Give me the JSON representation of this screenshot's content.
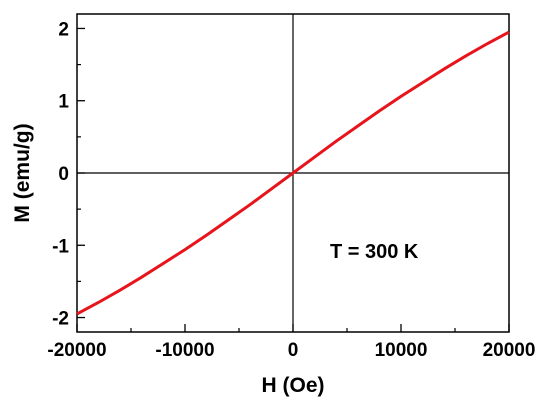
{
  "chart_data": {
    "type": "line",
    "title": "",
    "xlabel": "H (Oe)",
    "ylabel": "M (emu/g)",
    "xlim": [
      -20000,
      20000
    ],
    "ylim": [
      -2.2,
      2.2
    ],
    "x_ticks": [
      -20000,
      -10000,
      0,
      10000,
      20000
    ],
    "y_ticks": [
      -2,
      -1,
      0,
      1,
      2
    ],
    "x_tick_labels": [
      "-20000",
      "-10000",
      "0",
      "10000",
      "20000"
    ],
    "y_tick_labels": [
      "-2",
      "-1",
      "0",
      "1",
      "2"
    ],
    "annotation": "T = 300 K",
    "grid": false,
    "zero_lines": true,
    "series": [
      {
        "color": "#e8141b",
        "x": [
          -20000,
          -18000,
          -16000,
          -14000,
          -12000,
          -10000,
          -8000,
          -6000,
          -4000,
          -2000,
          0,
          2000,
          4000,
          6000,
          8000,
          10000,
          12000,
          14000,
          16000,
          18000,
          20000
        ],
        "y": [
          -1.95,
          -1.79,
          -1.62,
          -1.44,
          -1.25,
          -1.06,
          -0.86,
          -0.65,
          -0.44,
          -0.22,
          0.0,
          0.22,
          0.44,
          0.65,
          0.86,
          1.06,
          1.25,
          1.44,
          1.62,
          1.79,
          1.95
        ]
      }
    ]
  }
}
